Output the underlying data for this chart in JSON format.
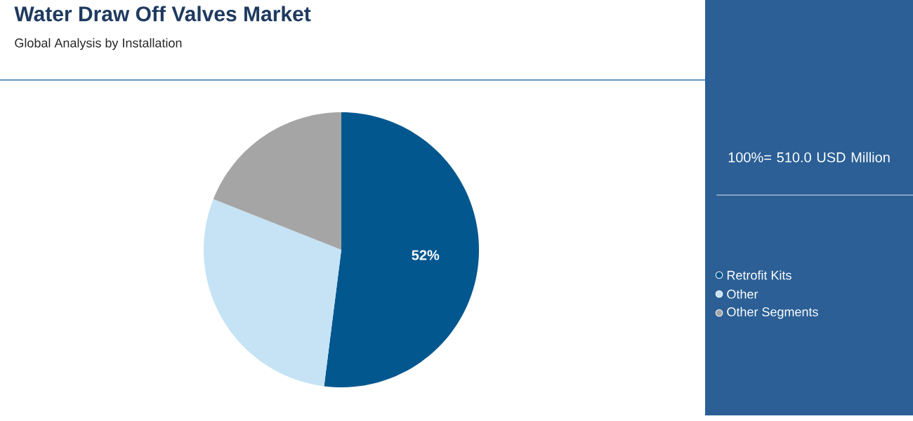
{
  "chart_data": {
    "type": "pie",
    "title": "Water Draw Off Valves Market",
    "subtitle": "Global Analysis by Installation",
    "categories": [
      "Retrofit Kits",
      "Other",
      "Other Segments"
    ],
    "values": [
      52,
      29,
      19
    ],
    "colors": [
      "#03578f",
      "#c5e3f5",
      "#a5a5a5"
    ],
    "value_labels": [
      "52%",
      null,
      null
    ],
    "annotations": [
      "100%= 510.0 USD Million"
    ],
    "legend": "right"
  }
}
